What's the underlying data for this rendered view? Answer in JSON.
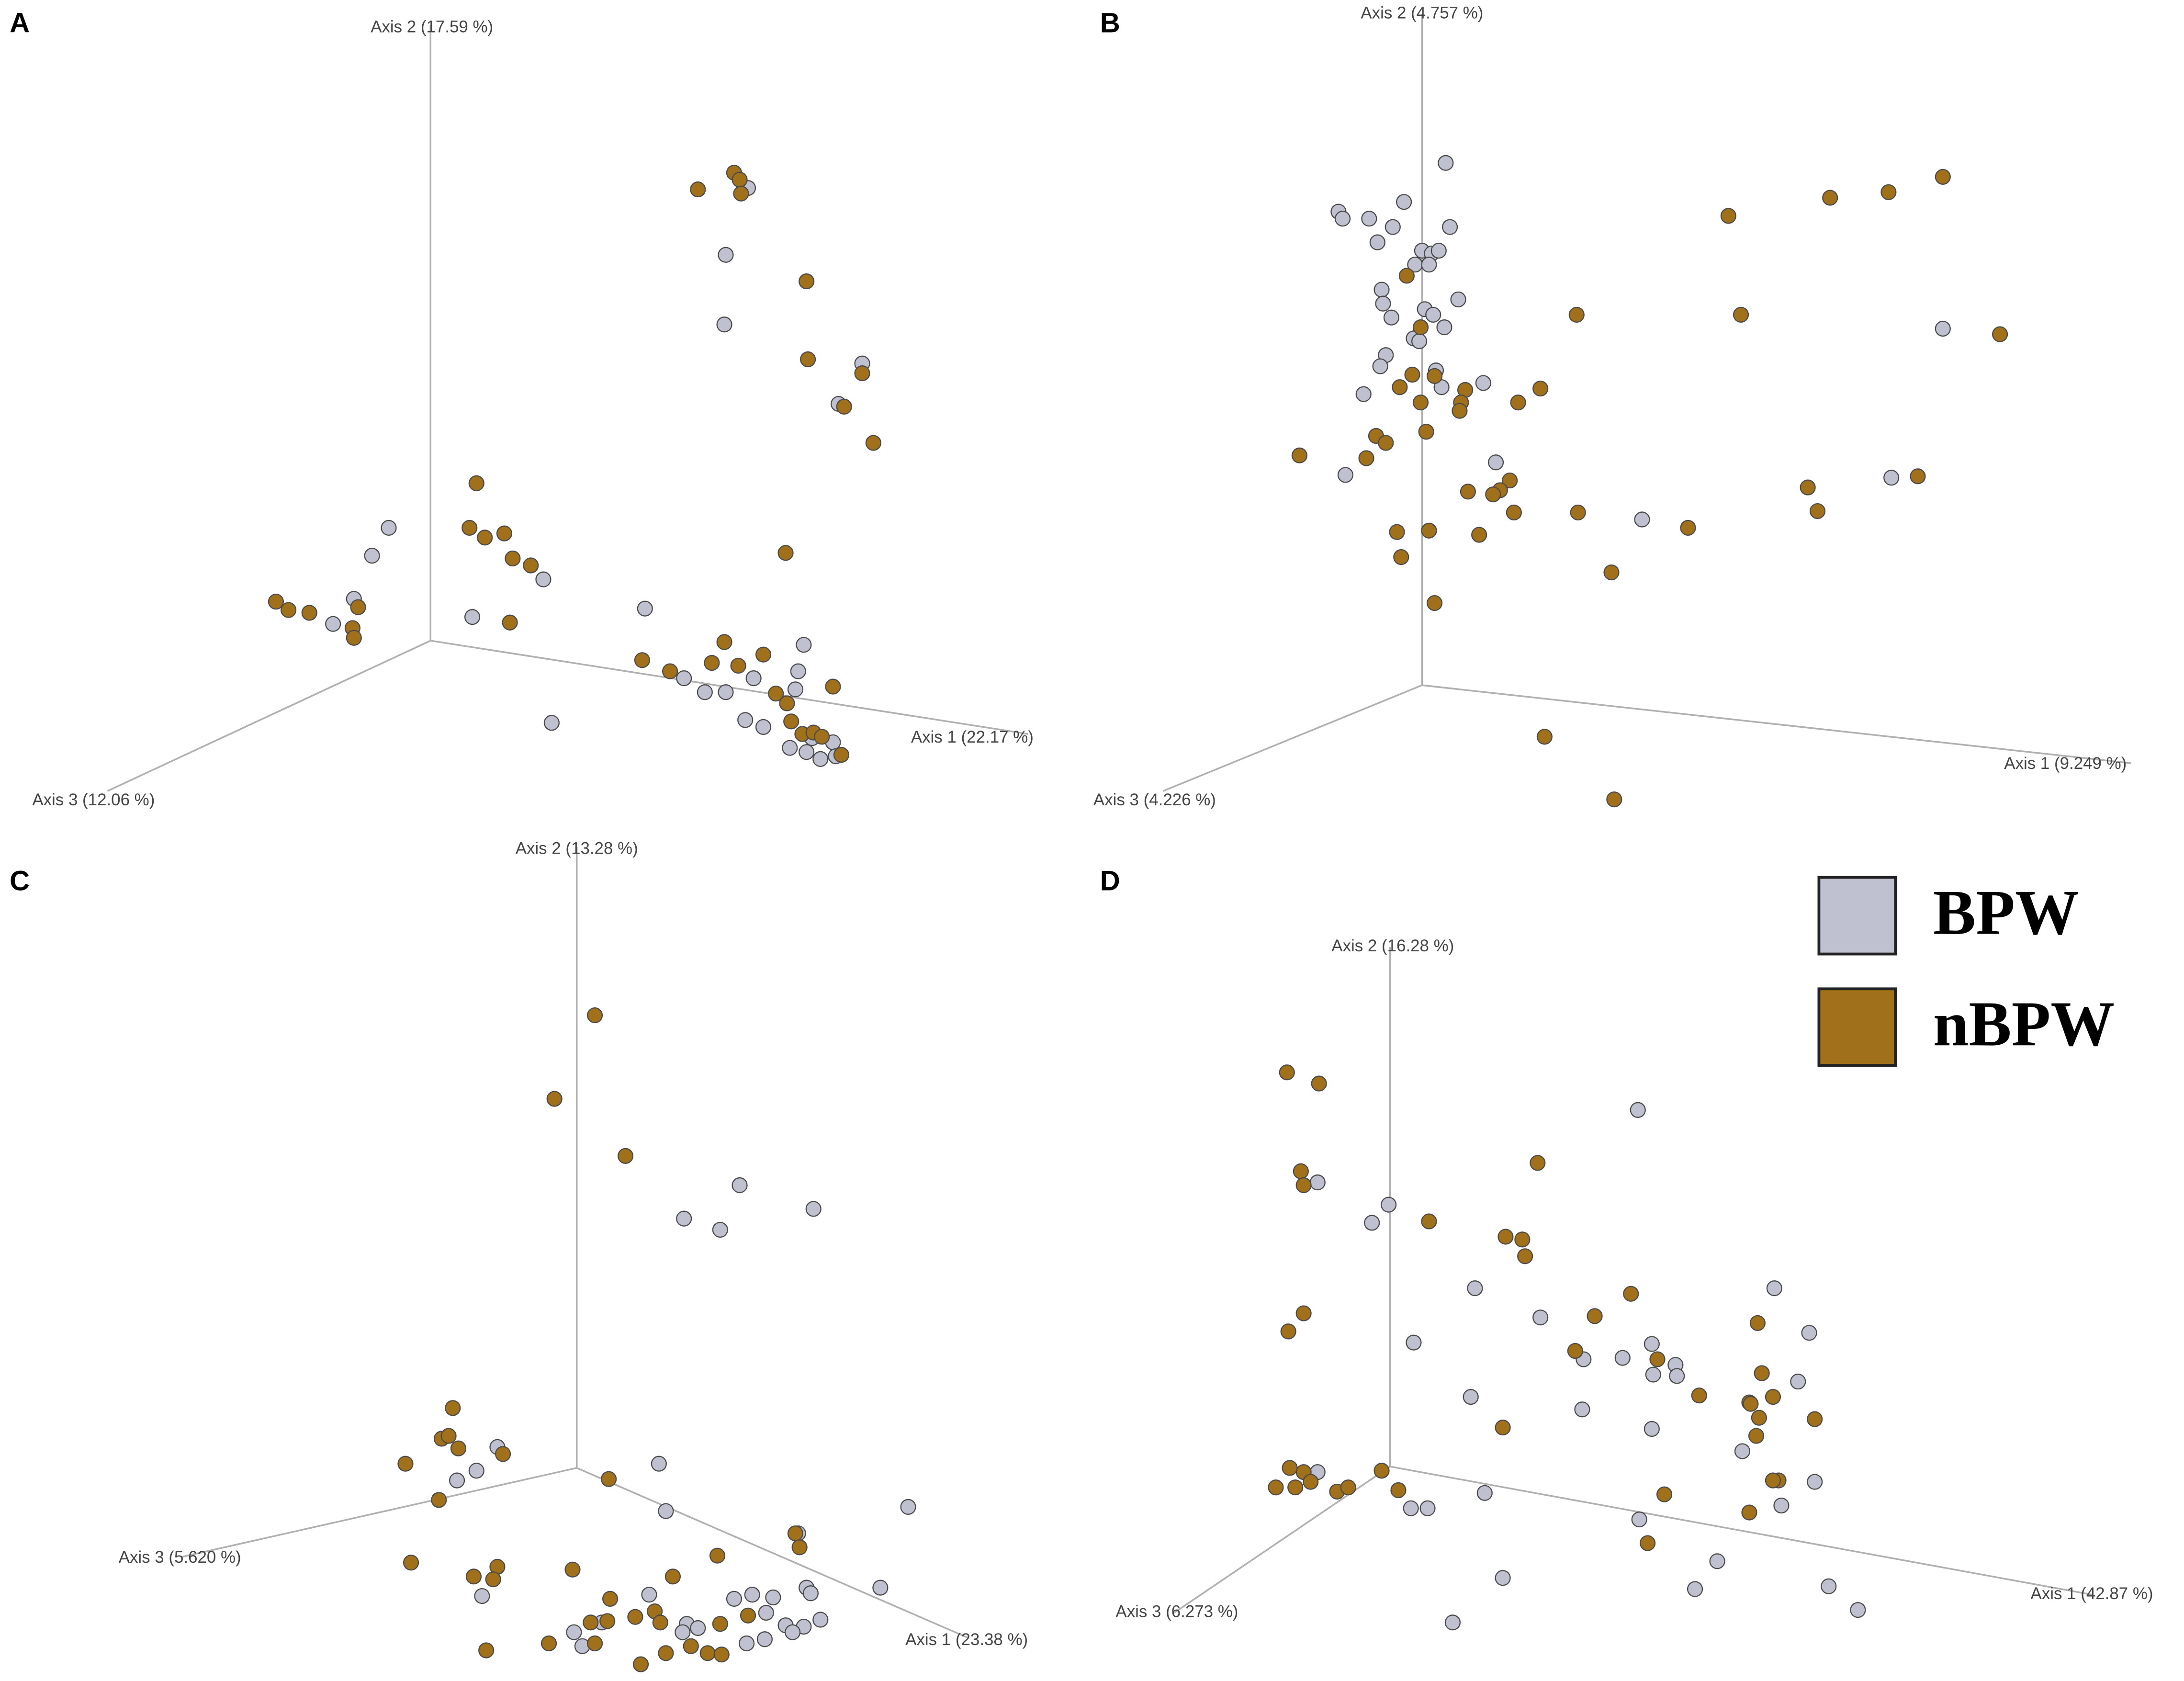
{
  "chart_data": [
    {
      "type": "scatter",
      "panel": "A",
      "xlabel": "Axis 1 (22.17 %)",
      "ylabel": "Axis 2 (17.59 %)",
      "zlabel": "Axis 3 (12.06 %)",
      "xlim": [
        0,
        784
      ],
      "ylim": [
        605,
        0
      ],
      "series": [
        {
          "name": "BPW",
          "color": "#c0c1d0",
          "x": [
            537,
            521,
            520,
            619,
            602,
            279,
            267,
            254,
            239,
            390,
            339,
            463,
            396,
            577,
            491,
            506,
            521,
            541,
            573,
            571,
            535,
            548,
            567,
            579,
            583,
            598,
            589,
            600
          ],
          "values": [
            135,
            183,
            233,
            261,
            290,
            379,
            399,
            430,
            448,
            416,
            443,
            437,
            519,
            463,
            487,
            497,
            497,
            487,
            482,
            495,
            517,
            522,
            537,
            540,
            530,
            533,
            545,
            543
          ]
        },
        {
          "name": "nBPW",
          "color": "#a0701a",
          "x": [
            527,
            531,
            501,
            532,
            579,
            580,
            619,
            606,
            627,
            342,
            337,
            348,
            362,
            368,
            381,
            366,
            564,
            198,
            207,
            222,
            257,
            253,
            254,
            461,
            481,
            520,
            548,
            511,
            530,
            557,
            598,
            565,
            568,
            576,
            584,
            590,
            604
          ],
          "values": [
            124,
            129,
            136,
            139,
            202,
            258,
            268,
            292,
            318,
            347,
            379,
            386,
            383,
            401,
            406,
            447,
            397,
            432,
            438,
            440,
            436,
            451,
            458,
            474,
            482,
            461,
            470,
            476,
            478,
            498,
            493,
            505,
            518,
            527,
            526,
            529,
            542
          ]
        }
      ]
    },
    {
      "type": "scatter",
      "panel": "B",
      "xlabel": "Axis 1 (9.249 %)",
      "ylabel": "Axis 2 (4.757 %)",
      "zlabel": "Axis 3 (4.226 %)",
      "xlim": [
        784,
        1568
      ],
      "ylim": [
        605,
        0
      ],
      "series": [
        {
          "name": "BPW",
          "color": "#c0c1d0",
          "x": [
            1038,
            961,
            964,
            983,
            1008,
            1000,
            1041,
            989,
            1021,
            1028,
            1033,
            1016,
            1026,
            992,
            1047,
            993,
            1023,
            1029,
            999,
            1037,
            1015,
            995,
            1019,
            991,
            1031,
            1035,
            979,
            1065,
            1074,
            966,
            1179,
            1395,
            1358
          ],
          "values": [
            117,
            152,
            157,
            157,
            145,
            163,
            163,
            174,
            180,
            182,
            180,
            190,
            190,
            208,
            215,
            218,
            222,
            226,
            228,
            235,
            243,
            255,
            245,
            263,
            266,
            278,
            283,
            275,
            332,
            341,
            373,
            236,
            343
          ]
        },
        {
          "name": "nBPW",
          "color": "#a0701a",
          "x": [
            1395,
            1356,
            1314,
            1241,
            1250,
            1132,
            1436,
            1010,
            1020,
            1014,
            1030,
            1005,
            1052,
            1049,
            1048,
            1020,
            1106,
            1090,
            1024,
            988,
            995,
            981,
            933,
            1084,
            1077,
            1072,
            1054,
            1087,
            1133,
            1003,
            1026,
            1062,
            1006,
            1212,
            1298,
            1305,
            1377,
            1157,
            1030,
            1109,
            1159
          ],
          "values": [
            127,
            138,
            142,
            155,
            226,
            226,
            240,
            198,
            235,
            269,
            270,
            278,
            280,
            289,
            295,
            289,
            279,
            289,
            310,
            313,
            318,
            329,
            327,
            345,
            352,
            355,
            353,
            368,
            368,
            382,
            381,
            384,
            400,
            379,
            350,
            367,
            342,
            411,
            433,
            529,
            574
          ]
        }
      ]
    },
    {
      "type": "scatter",
      "panel": "C",
      "xlabel": "Axis 1 (23.38 %)",
      "ylabel": "Axis 2 (13.28 %)",
      "zlabel": "Axis 3 (5.620 %)",
      "xlim": [
        0,
        784
      ],
      "ylim": [
        1207,
        605
      ],
      "series": [
        {
          "name": "BPW",
          "color": "#c0c1d0",
          "x": [
            531,
            584,
            491,
            517,
            357,
            342,
            328,
            473,
            478,
            652,
            632,
            573,
            579,
            582,
            555,
            540,
            527,
            550,
            564,
            577,
            589,
            569,
            536,
            549,
            493,
            490,
            346,
            418,
            412,
            432,
            466,
            501
          ],
          "values": [
            851,
            868,
            875,
            883,
            1039,
            1056,
            1063,
            1051,
            1085,
            1082,
            1140,
            1101,
            1140,
            1144,
            1147,
            1145,
            1148,
            1158,
            1167,
            1168,
            1163,
            1172,
            1180,
            1177,
            1166,
            1172,
            1146,
            1182,
            1172,
            1165,
            1145,
            1169
          ]
        },
        {
          "name": "nBPW",
          "color": "#a0701a",
          "x": [
            427,
            398,
            449,
            325,
            317,
            322,
            329,
            291,
            361,
            315,
            437,
            571,
            574,
            515,
            295,
            357,
            340,
            354,
            411,
            483,
            438,
            470,
            456,
            474,
            424,
            436,
            394,
            427,
            537,
            517,
            496,
            478,
            508,
            518,
            460,
            349
          ],
          "values": [
            729,
            789,
            830,
            1011,
            1033,
            1031,
            1040,
            1051,
            1044,
            1077,
            1062,
            1101,
            1111,
            1117,
            1122,
            1125,
            1132,
            1134,
            1127,
            1132,
            1148,
            1157,
            1161,
            1165,
            1165,
            1164,
            1180,
            1180,
            1160,
            1166,
            1182,
            1187,
            1187,
            1188,
            1195,
            1185
          ]
        }
      ]
    },
    {
      "type": "scatter",
      "panel": "D",
      "xlabel": "Axis 1 (42.87 %)",
      "ylabel": "Axis 2 (16.28 %)",
      "zlabel": "Axis 3 (6.273 %)",
      "xlim": [
        784,
        1568
      ],
      "ylim": [
        1207,
        605
      ],
      "series": [
        {
          "name": "BPW",
          "color": "#c0c1d0",
          "x": [
            1176,
            997,
            946,
            985,
            1059,
            1106,
            1015,
            1056,
            1136,
            1137,
            1165,
            1187,
            1186,
            1203,
            1204,
            1274,
            1299,
            1291,
            1251,
            1303,
            1279,
            1186,
            1066,
            946,
            1013,
            1025,
            1177,
            1233,
            1217,
            1079,
            1313,
            1334,
            1043
          ],
          "values": [
            797,
            865,
            849,
            878,
            925,
            946,
            964,
            1003,
            1012,
            976,
            975,
            987,
            965,
            980,
            988,
            925,
            957,
            992,
            1042,
            1064,
            1081,
            1026,
            1072,
            1057,
            1083,
            1083,
            1091,
            1121,
            1141,
            1133,
            1139,
            1156,
            1165
          ]
        },
        {
          "name": "nBPW",
          "color": "#a0701a",
          "x": [
            924,
            947,
            934,
            936,
            1026,
            1104,
            1081,
            1093,
            1095,
            1171,
            1145,
            1262,
            936,
            925,
            1131,
            1190,
            1220,
            1265,
            1256,
            1273,
            1263,
            1261,
            1257,
            1303,
            1079,
            1277,
            1273,
            1195,
            1256,
            1183,
            926,
            936,
            916,
            930,
            941,
            960,
            968,
            992,
            1004
          ],
          "values": [
            770,
            778,
            841,
            851,
            877,
            835,
            888,
            890,
            902,
            929,
            945,
            950,
            943,
            956,
            970,
            976,
            1002,
            986,
            1007,
            1003,
            1018,
            1031,
            1008,
            1019,
            1025,
            1063,
            1063,
            1073,
            1086,
            1108,
            1054,
            1057,
            1068,
            1068,
            1064,
            1071,
            1068,
            1056,
            1070
          ]
        }
      ]
    }
  ]
}
